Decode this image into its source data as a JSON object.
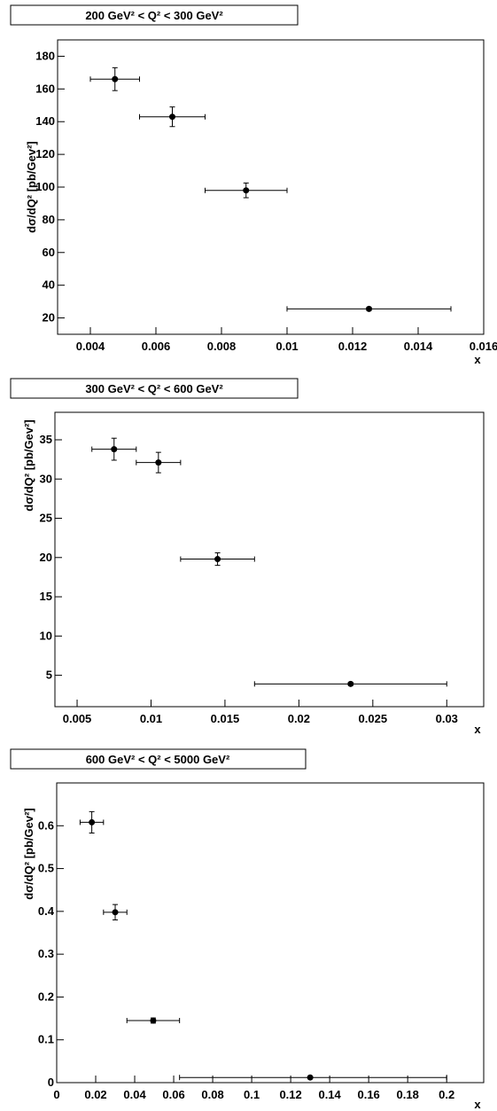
{
  "chart_data": [
    {
      "type": "scatter",
      "title": "200 GeV² < Q² < 300 GeV²",
      "xlabel": "x",
      "ylabel": "dσ/dQ² [pb/Gev²]",
      "xlim": [
        0.003,
        0.016
      ],
      "ylim": [
        10,
        190
      ],
      "x_ticks": [
        0.004,
        0.006,
        0.008,
        0.01,
        0.012,
        0.014,
        0.016
      ],
      "x_tick_labels": [
        "0.004",
        "0.006",
        "0.008",
        "0.01",
        "0.012",
        "0.014",
        "0.016"
      ],
      "y_ticks": [
        20,
        40,
        60,
        80,
        100,
        120,
        140,
        160,
        180
      ],
      "y_tick_labels": [
        "20",
        "40",
        "60",
        "80",
        "100",
        "120",
        "140",
        "160",
        "180"
      ],
      "grid": false,
      "series": [
        {
          "points": [
            {
              "x": 0.00475,
              "xlo": 0.004,
              "xhi": 0.0055,
              "y": 166,
              "yerr": 7
            },
            {
              "x": 0.0065,
              "xlo": 0.0055,
              "xhi": 0.0075,
              "y": 143,
              "yerr": 6
            },
            {
              "x": 0.00875,
              "xlo": 0.0075,
              "xhi": 0.01,
              "y": 98,
              "yerr": 4.5
            },
            {
              "x": 0.0125,
              "xlo": 0.01,
              "xhi": 0.015,
              "y": 25.5,
              "yerr": 1
            }
          ]
        }
      ]
    },
    {
      "type": "scatter",
      "title": "300 GeV² < Q² < 600 GeV²",
      "xlabel": "x",
      "ylabel": "dσ/dQ² [pb/Gev²]",
      "xlim": [
        0.0035,
        0.0325
      ],
      "ylim": [
        1,
        38.5
      ],
      "x_ticks": [
        0.005,
        0.01,
        0.015,
        0.02,
        0.025,
        0.03
      ],
      "x_tick_labels": [
        "0.005",
        "0.01",
        "0.015",
        "0.02",
        "0.025",
        "0.03"
      ],
      "y_ticks": [
        5,
        10,
        15,
        20,
        25,
        30,
        35
      ],
      "y_tick_labels": [
        "5",
        "10",
        "15",
        "20",
        "25",
        "30",
        "35"
      ],
      "grid": false,
      "series": [
        {
          "points": [
            {
              "x": 0.0075,
              "xlo": 0.006,
              "xhi": 0.009,
              "y": 33.8,
              "yerr": 1.4
            },
            {
              "x": 0.0105,
              "xlo": 0.009,
              "xhi": 0.012,
              "y": 32.1,
              "yerr": 1.3
            },
            {
              "x": 0.0145,
              "xlo": 0.012,
              "xhi": 0.017,
              "y": 19.8,
              "yerr": 0.8
            },
            {
              "x": 0.0235,
              "xlo": 0.017,
              "xhi": 0.03,
              "y": 3.9,
              "yerr": 0.2
            }
          ]
        }
      ]
    },
    {
      "type": "scatter",
      "title": "600 GeV² < Q² < 5000 GeV²",
      "xlabel": "x",
      "ylabel": "dσ/dQ² [pb/Gev²]",
      "xlim": [
        0,
        0.219
      ],
      "ylim": [
        0,
        0.7
      ],
      "x_ticks": [
        0,
        0.02,
        0.04,
        0.06,
        0.08,
        0.1,
        0.12,
        0.14,
        0.16,
        0.18,
        0.2
      ],
      "x_tick_labels": [
        "0",
        "0.02",
        "0.04",
        "0.06",
        "0.08",
        "0.1",
        "0.12",
        "0.14",
        "0.16",
        "0.18",
        "0.2"
      ],
      "y_ticks": [
        0,
        0.1,
        0.2,
        0.3,
        0.4,
        0.5,
        0.6
      ],
      "y_tick_labels": [
        "0",
        "0.1",
        "0.2",
        "0.3",
        "0.4",
        "0.5",
        "0.6"
      ],
      "grid": false,
      "series": [
        {
          "points": [
            {
              "x": 0.018,
              "xlo": 0.012,
              "xhi": 0.024,
              "y": 0.608,
              "yerr": 0.025
            },
            {
              "x": 0.03,
              "xlo": 0.024,
              "xhi": 0.036,
              "y": 0.398,
              "yerr": 0.018
            },
            {
              "x": 0.0495,
              "xlo": 0.036,
              "xhi": 0.063,
              "y": 0.145,
              "yerr": 0.006
            },
            {
              "x": 0.13,
              "xlo": 0.063,
              "xhi": 0.2,
              "y": 0.012,
              "yerr": 0.001
            }
          ]
        }
      ]
    }
  ]
}
